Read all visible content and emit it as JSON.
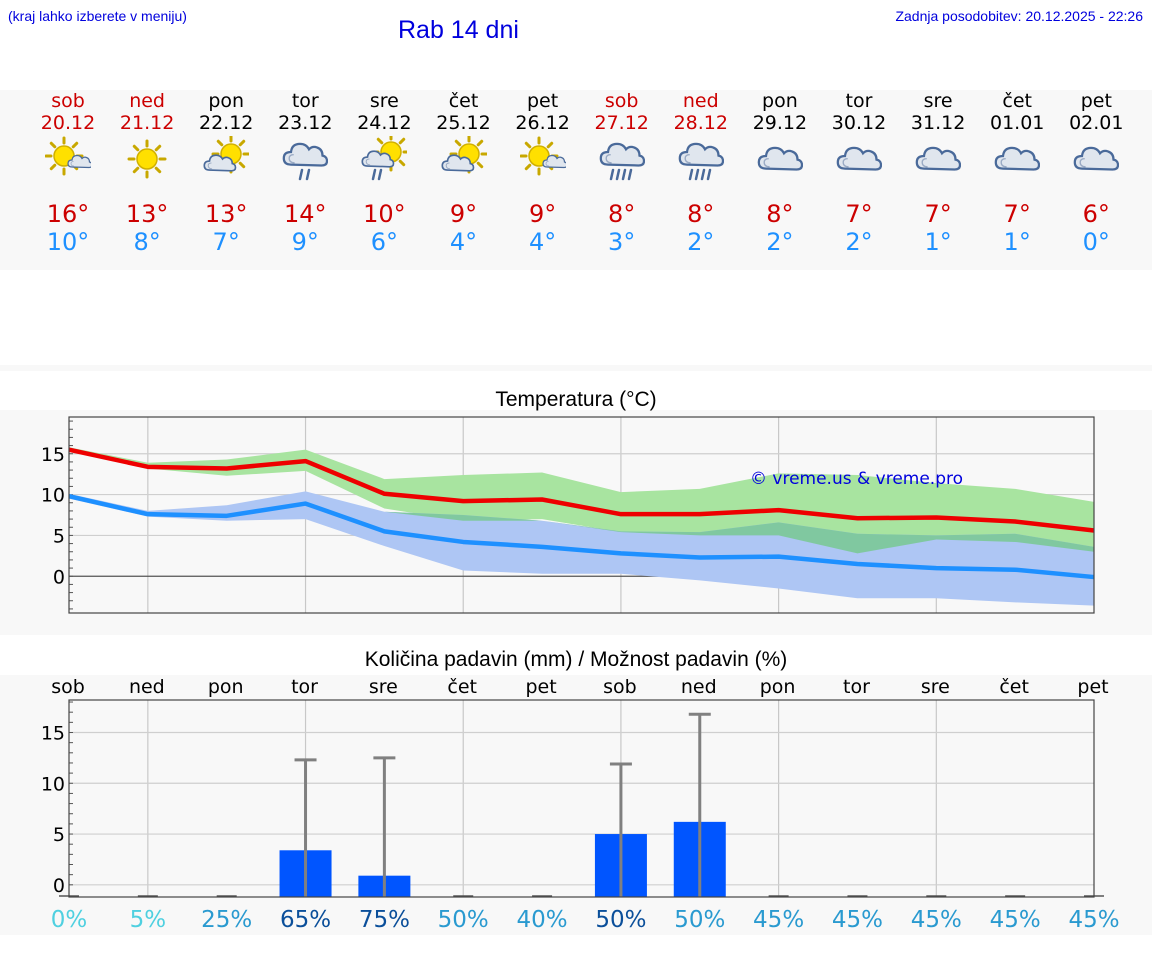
{
  "header": {
    "hint": "(kraj lahko izberete v meniju)",
    "title": "Rab 14 dni",
    "updated": "Zadnja posodobitev: 20.12.2025 - 22:26"
  },
  "days": [
    {
      "name": "sob",
      "date": "20.12",
      "weekend": true,
      "icon": "sun-cloud-icon",
      "tmax": "16°",
      "tmin": "10°"
    },
    {
      "name": "ned",
      "date": "21.12",
      "weekend": true,
      "icon": "sun-icon",
      "tmax": "13°",
      "tmin": "8°"
    },
    {
      "name": "pon",
      "date": "22.12",
      "weekend": false,
      "icon": "partly-cloudy-icon",
      "tmax": "13°",
      "tmin": "7°"
    },
    {
      "name": "tor",
      "date": "23.12",
      "weekend": false,
      "icon": "cloud-rain-icon",
      "tmax": "14°",
      "tmin": "9°"
    },
    {
      "name": "sre",
      "date": "24.12",
      "weekend": false,
      "icon": "sun-rain-icon",
      "tmax": "10°",
      "tmin": "6°"
    },
    {
      "name": "čet",
      "date": "25.12",
      "weekend": false,
      "icon": "partly-cloudy-icon",
      "tmax": "9°",
      "tmin": "4°"
    },
    {
      "name": "pet",
      "date": "26.12",
      "weekend": false,
      "icon": "sun-cloud-icon",
      "tmax": "9°",
      "tmin": "4°"
    },
    {
      "name": "sob",
      "date": "27.12",
      "weekend": true,
      "icon": "heavy-rain-icon",
      "tmax": "8°",
      "tmin": "3°"
    },
    {
      "name": "ned",
      "date": "28.12",
      "weekend": true,
      "icon": "heavy-rain-icon",
      "tmax": "8°",
      "tmin": "2°"
    },
    {
      "name": "pon",
      "date": "29.12",
      "weekend": false,
      "icon": "cloud-icon",
      "tmax": "8°",
      "tmin": "2°"
    },
    {
      "name": "tor",
      "date": "30.12",
      "weekend": false,
      "icon": "cloud-icon",
      "tmax": "7°",
      "tmin": "2°"
    },
    {
      "name": "sre",
      "date": "31.12",
      "weekend": false,
      "icon": "cloud-icon",
      "tmax": "7°",
      "tmin": "1°"
    },
    {
      "name": "čet",
      "date": "01.01",
      "weekend": false,
      "icon": "cloud-icon",
      "tmax": "7°",
      "tmin": "1°"
    },
    {
      "name": "pet",
      "date": "02.01",
      "weekend": false,
      "icon": "cloud-icon",
      "tmax": "6°",
      "tmin": "0°"
    }
  ],
  "colors": {
    "weekend": "#cc0000",
    "tmax": "#cc0000",
    "tmin": "#1e90ff",
    "max_band": "#a8e4a0",
    "min_band": "#aec6f4",
    "overlap_band": "#80c8a0",
    "bar": "#0055ff",
    "whisker": "#808080"
  },
  "chart_data": [
    {
      "type": "line",
      "title": "Temperatura (°C)",
      "watermark": "© vreme.us & vreme.pro",
      "x": [
        0,
        1,
        2,
        3,
        4,
        5,
        6,
        7,
        8,
        9,
        10,
        11,
        12,
        13
      ],
      "ylim": [
        -4.5,
        19.5
      ],
      "yticks": [
        "15",
        "10",
        "5",
        "0"
      ],
      "series": [
        {
          "name": "max",
          "values": [
            15.5,
            13.4,
            13.2,
            14.1,
            10.1,
            9.2,
            9.4,
            7.6,
            7.6,
            8.1,
            7.1,
            7.2,
            6.7,
            5.6
          ]
        },
        {
          "name": "min",
          "values": [
            9.8,
            7.6,
            7.4,
            8.9,
            5.5,
            4.2,
            3.6,
            2.8,
            2.3,
            2.4,
            1.5,
            1.0,
            0.8,
            -0.1
          ]
        },
        {
          "name": "max_low",
          "values": [
            15.3,
            13.2,
            12.3,
            12.9,
            8.3,
            6.8,
            7.0,
            5.4,
            5.0,
            5.0,
            2.8,
            4.5,
            4.2,
            3.0
          ]
        },
        {
          "name": "max_high",
          "values": [
            15.8,
            13.9,
            14.3,
            15.5,
            11.9,
            12.4,
            12.7,
            10.3,
            10.7,
            12.6,
            12.4,
            11.4,
            10.7,
            9.1
          ]
        },
        {
          "name": "min_low",
          "values": [
            9.5,
            7.3,
            6.8,
            7.0,
            3.7,
            0.7,
            0.3,
            0.3,
            -0.5,
            -1.5,
            -2.7,
            -2.7,
            -3.2,
            -3.6
          ]
        },
        {
          "name": "min_high",
          "values": [
            10.1,
            8.0,
            8.7,
            10.4,
            7.9,
            7.5,
            6.8,
            5.5,
            5.4,
            6.6,
            5.2,
            5.0,
            5.2,
            3.6
          ]
        }
      ]
    },
    {
      "type": "bar",
      "title": "Količina padavin (mm) / Možnost padavin (%)",
      "categories": [
        "sob",
        "ned",
        "pon",
        "tor",
        "sre",
        "čet",
        "pet",
        "sob",
        "ned",
        "pon",
        "tor",
        "sre",
        "čet",
        "pet"
      ],
      "ylim": [
        -1.2,
        18.2
      ],
      "yticks": [
        "15",
        "10",
        "5",
        "0"
      ],
      "values": [
        0,
        0,
        0,
        3.4,
        0.9,
        0,
        0,
        5.0,
        6.2,
        0,
        0,
        0,
        0,
        0
      ],
      "upper": [
        0,
        0,
        0,
        12.3,
        12.5,
        0,
        0,
        11.9,
        16.8,
        0,
        0,
        0,
        0,
        0
      ],
      "probabilities": [
        "0%",
        "5%",
        "25%",
        "65%",
        "75%",
        "50%",
        "40%",
        "50%",
        "50%",
        "45%",
        "45%",
        "45%",
        "45%",
        "45%"
      ],
      "probability_colors": [
        "#4fd0e0",
        "#4fd0e0",
        "#2a9ad0",
        "#0b4f9a",
        "#0b4f9a",
        "#2a9ad0",
        "#2a9ad0",
        "#0b4f9a",
        "#2a9ad0",
        "#2a9ad0",
        "#2a9ad0",
        "#2a9ad0",
        "#2a9ad0",
        "#2a9ad0"
      ]
    }
  ]
}
